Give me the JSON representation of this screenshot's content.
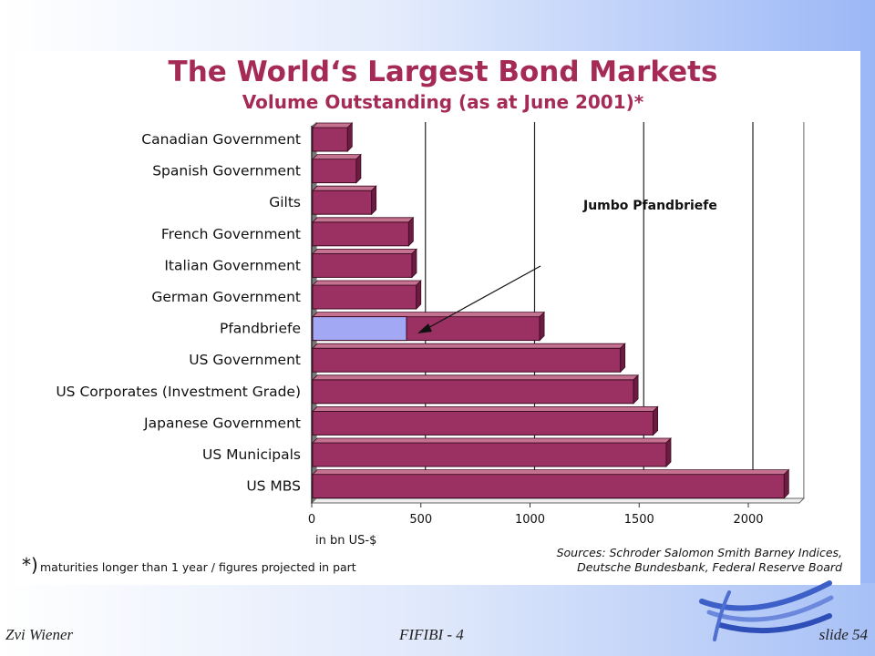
{
  "footer": {
    "author": "Zvi Wiener",
    "course": "FIFIBI - 4",
    "slide": "slide 54"
  },
  "colors": {
    "bar": "#9b3162",
    "bar_top": "#c4728f",
    "bar_side": "#6b1c40",
    "highlight": "#a3a8f5",
    "title": "#a52a56"
  },
  "chart_data": {
    "type": "bar",
    "orientation": "horizontal",
    "title": "The World‘s Largest Bond Markets",
    "subtitle": "Volume Outstanding (as at June 2001)*",
    "xlabel": "in bn US-$",
    "ylabel": "",
    "xlim": [
      0,
      2200
    ],
    "xticks": [
      "0",
      "500",
      "1000",
      "1500",
      "2000"
    ],
    "grid": true,
    "categories": [
      "Canadian Government",
      "Spanish Government",
      "Gilts",
      "French Government",
      "Italian Government",
      "German Government",
      "Pfandbriefe",
      "US Government",
      "US Corporates (Investment Grade)",
      "Japanese Government",
      "US Municipals",
      "US MBS"
    ],
    "values": [
      160,
      200,
      270,
      440,
      455,
      475,
      1040,
      1410,
      1470,
      1560,
      1620,
      2160
    ],
    "highlight": {
      "category": "Pfandbriefe",
      "label": "Jumbo Pfandbriefe",
      "value": 430
    },
    "annotation": "Jumbo Pfandbriefe",
    "footnote_mark": "*)",
    "footnote": "maturities longer than 1 year / figures projected in part",
    "sources": [
      "Sources: Schroder Salomon Smith Barney Indices,",
      "Deutsche Bundesbank, Federal Reserve Board"
    ]
  }
}
